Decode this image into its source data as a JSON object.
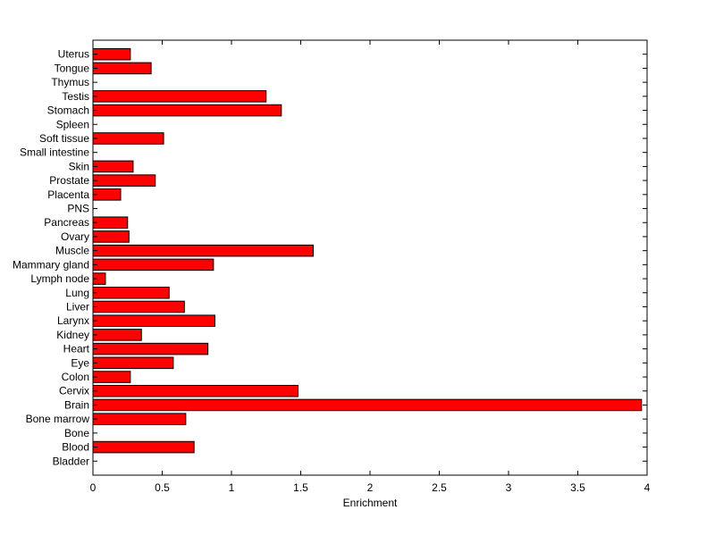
{
  "chart_data": {
    "type": "bar",
    "orientation": "horizontal",
    "title": "",
    "xlabel": "Enrichment",
    "ylabel": "",
    "xlim": [
      0,
      4
    ],
    "xticks": [
      "0",
      "0.5",
      "1",
      "1.5",
      "2",
      "2.5",
      "3",
      "3.5",
      "4"
    ],
    "grid": false,
    "bar_color": "#ff0000",
    "categories": [
      "Bladder",
      "Blood",
      "Bone",
      "Bone marrow",
      "Brain",
      "Cervix",
      "Colon",
      "Eye",
      "Heart",
      "Kidney",
      "Larynx",
      "Liver",
      "Lung",
      "Lymph node",
      "Mammary gland",
      "Muscle",
      "Ovary",
      "Pancreas",
      "PNS",
      "Placenta",
      "Prostate",
      "Skin",
      "Small intestine",
      "Soft tissue",
      "Spleen",
      "Stomach",
      "Testis",
      "Thymus",
      "Tongue",
      "Uterus"
    ],
    "values": [
      0,
      0.73,
      0,
      0.67,
      3.96,
      1.48,
      0.27,
      0.58,
      0.83,
      0.35,
      0.88,
      0.66,
      0.55,
      0.09,
      0.87,
      1.59,
      0.26,
      0.25,
      0,
      0.2,
      0.45,
      0.29,
      0,
      0.51,
      0,
      1.36,
      1.25,
      0,
      0.42,
      0.27
    ]
  }
}
